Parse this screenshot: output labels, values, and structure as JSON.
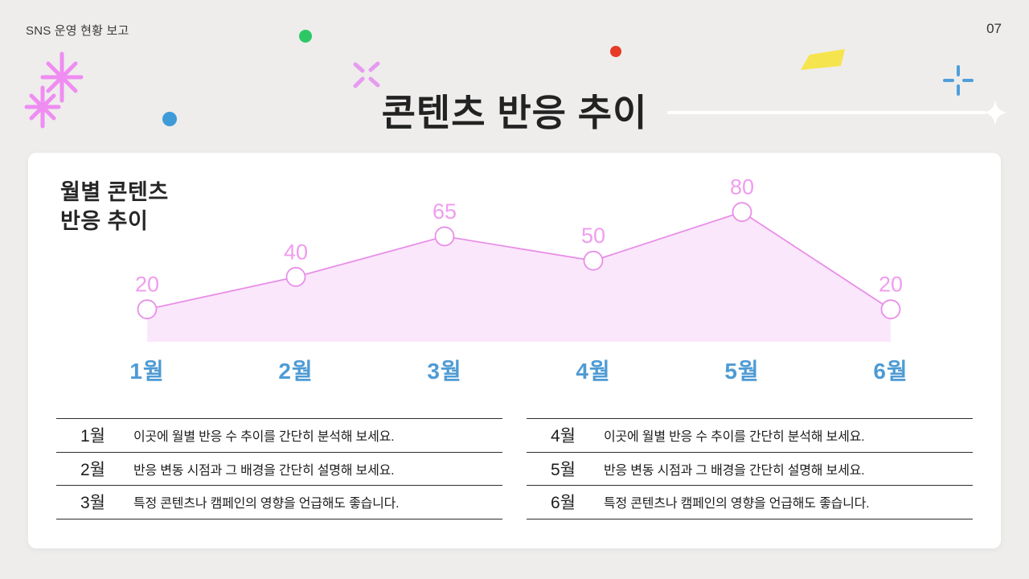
{
  "page": {
    "header_title": "SNS 운영 현황 보고",
    "page_number": "07",
    "title": "콘텐츠 반응 추이"
  },
  "chart_data": {
    "type": "area",
    "title_lines": [
      "월별 콘텐츠",
      "반응 추이"
    ],
    "categories": [
      "1월",
      "2월",
      "3월",
      "4월",
      "5월",
      "6월"
    ],
    "values": [
      20,
      40,
      65,
      50,
      80,
      20
    ],
    "ylim": [
      0,
      100
    ],
    "grid": false,
    "legend": false,
    "value_labels_shown": true,
    "colors": {
      "line": "#e88fe8",
      "fill": "#fbe7fb",
      "marker_fill": "#ffffff",
      "value_label": "#f09dee",
      "category_label": "#4f9bd4"
    }
  },
  "notes": {
    "left": [
      {
        "month": "1월",
        "text": "이곳에 월별 반응 수 추이를 간단히 분석해 보세요."
      },
      {
        "month": "2월",
        "text": "반응 변동 시점과 그 배경을 간단히 설명해 보세요."
      },
      {
        "month": "3월",
        "text": "특정 콘텐츠나 캠페인의 영향을 언급해도 좋습니다."
      }
    ],
    "right": [
      {
        "month": "4월",
        "text": "이곳에 월별 반응 수 추이를 간단히 분석해 보세요."
      },
      {
        "month": "5월",
        "text": "반응 변동 시점과 그 배경을 간단히 설명해 보세요."
      },
      {
        "month": "6월",
        "text": "특정 콘텐츠나 캠페인의 영향을 언급해도 좋습니다."
      }
    ]
  },
  "decorations": {
    "green_dot": "#2dc865",
    "red_dot": "#e73b26",
    "blue_dot": "#3f9bd7",
    "blue_plus": "#4f9fdb",
    "pink_sparkle": "#ef8df2",
    "pink_x": "#e79bf0",
    "yellow_shape": "#f6e44e"
  }
}
